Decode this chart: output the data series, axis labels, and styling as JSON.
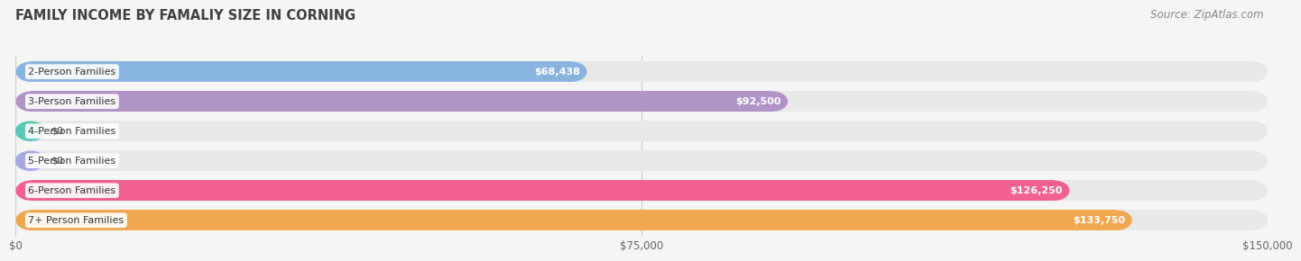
{
  "title": "FAMILY INCOME BY FAMALIY SIZE IN CORNING",
  "source": "Source: ZipAtlas.com",
  "categories": [
    "2-Person Families",
    "3-Person Families",
    "4-Person Families",
    "5-Person Families",
    "6-Person Families",
    "7+ Person Families"
  ],
  "values": [
    68438,
    92500,
    0,
    0,
    126250,
    133750
  ],
  "bar_colors": [
    "#8ab4e0",
    "#b094c8",
    "#5ec8b8",
    "#a8a8e0",
    "#f06090",
    "#f0a850"
  ],
  "value_labels": [
    "$68,438",
    "$92,500",
    "$0",
    "$0",
    "$126,250",
    "$133,750"
  ],
  "xlim": [
    0,
    150000
  ],
  "xticklabels": [
    "$0",
    "$75,000",
    "$150,000"
  ],
  "xtick_vals": [
    0,
    75000,
    150000
  ],
  "bg_color": "#f5f5f5",
  "bar_bg_color": "#e8e8e8",
  "title_color": "#404040",
  "source_color": "#888888",
  "title_fontsize": 10.5,
  "source_fontsize": 8.5,
  "label_fontsize": 8,
  "value_fontsize": 8,
  "tick_fontsize": 8.5
}
